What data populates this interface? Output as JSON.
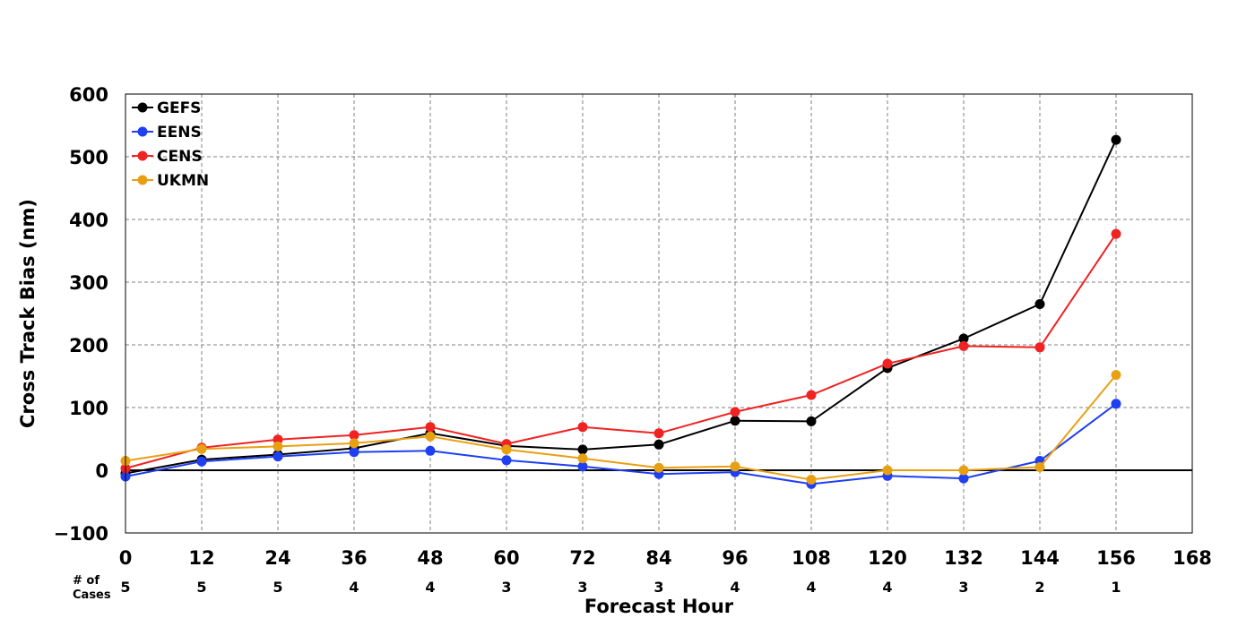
{
  "chart_data": {
    "type": "line",
    "xlabel": "Forecast Hour",
    "ylabel": "Cross Track Bias (nm)",
    "xlim": [
      0,
      168
    ],
    "ylim": [
      -100,
      600
    ],
    "xticks": [
      0,
      12,
      24,
      36,
      48,
      60,
      72,
      84,
      96,
      108,
      120,
      132,
      144,
      156,
      168
    ],
    "yticks": [
      -100,
      0,
      100,
      200,
      300,
      400,
      500,
      600
    ],
    "ytick_labels": [
      "−100",
      "0",
      "100",
      "200",
      "300",
      "400",
      "500",
      "600"
    ],
    "grid": true,
    "zero_line": true,
    "legend_position": "top-left",
    "x": [
      0,
      12,
      24,
      36,
      48,
      60,
      72,
      84,
      96,
      108,
      120,
      132,
      144,
      156
    ],
    "series": [
      {
        "name": "GEFS",
        "color": "#000000",
        "values": [
          -5,
          17,
          25,
          35,
          59,
          39,
          33,
          41,
          79,
          78,
          163,
          210,
          265,
          527
        ]
      },
      {
        "name": "EENS",
        "color": "#1f3ff0",
        "values": [
          -10,
          14,
          22,
          29,
          31,
          16,
          6,
          -6,
          -3,
          -22,
          -9,
          -13,
          15,
          106
        ]
      },
      {
        "name": "CENS",
        "color": "#f02222",
        "values": [
          3,
          36,
          49,
          56,
          69,
          42,
          69,
          59,
          93,
          120,
          170,
          198,
          196,
          377
        ]
      },
      {
        "name": "UKMN",
        "color": "#e8a013",
        "values": [
          15,
          34,
          38,
          43,
          54,
          33,
          19,
          4,
          6,
          -15,
          0,
          0,
          5,
          152
        ]
      }
    ],
    "cases": {
      "label_line1": "# of",
      "label_line2": "Cases",
      "x": [
        0,
        12,
        24,
        36,
        48,
        60,
        72,
        84,
        96,
        108,
        120,
        132,
        144,
        156
      ],
      "counts": [
        5,
        5,
        5,
        4,
        4,
        3,
        3,
        3,
        4,
        4,
        4,
        3,
        2,
        1
      ]
    }
  }
}
